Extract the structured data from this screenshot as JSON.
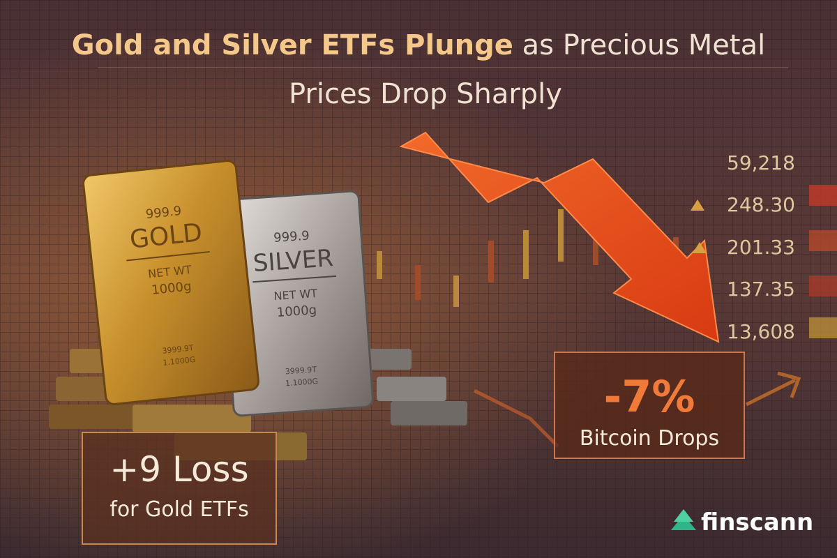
{
  "header": {
    "title_bold": "Gold and Silver ETFs Plunge",
    "title_rest": "as Precious Metal",
    "title_line2": "Prices Drop Sharply"
  },
  "bars": [
    {
      "purity": "999.9",
      "metal": "GOLD",
      "weight_label": "NET WT",
      "weight": "1000g",
      "stamp1": "3999.9T",
      "stamp2": "1.1000G"
    },
    {
      "purity": "999.9",
      "metal": "SILVER",
      "weight_label": "NET WT",
      "weight": "1000g",
      "stamp1": "3999.9T",
      "stamp2": "1.1000G"
    }
  ],
  "ticker": [
    "59,218",
    "248.30",
    "201.33",
    "137.35",
    "13,608"
  ],
  "callouts": [
    {
      "figure": "+9 Loss",
      "caption": "for Gold ETFs"
    },
    {
      "figure": "-7%",
      "caption": "Bitcoin Drops"
    }
  ],
  "brand": "finscann"
}
